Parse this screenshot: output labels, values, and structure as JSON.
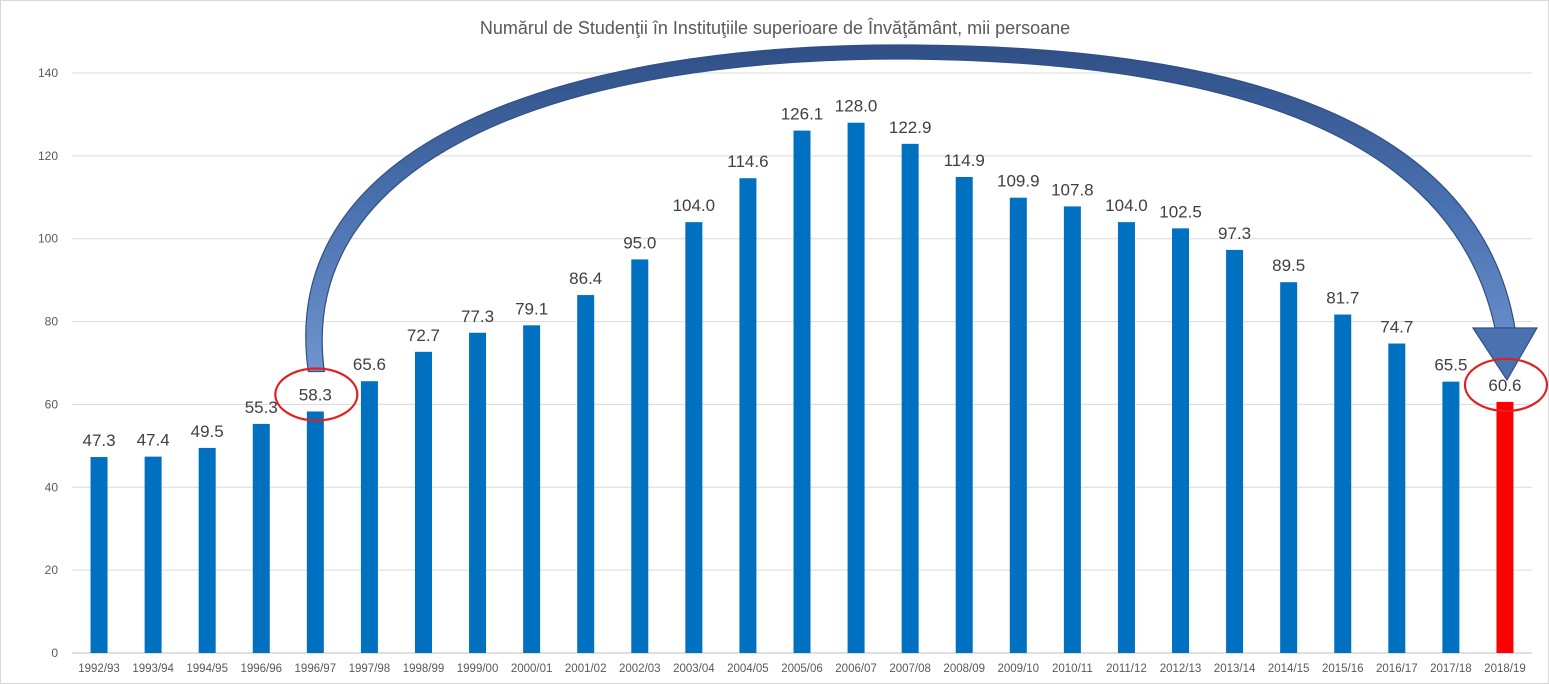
{
  "chart_data": {
    "type": "bar",
    "title": "Numărul de Studenţii în Instituţiile superioare de Învăţământ, mii persoane",
    "xlabel": "",
    "ylabel": "",
    "ylim": [
      0,
      140
    ],
    "yticks": [
      0,
      20,
      40,
      60,
      80,
      100,
      120,
      140
    ],
    "grid": true,
    "legend": "none",
    "categories": [
      "1992/93",
      "1993/94",
      "1994/95",
      "1996/96",
      "1996/97",
      "1997/98",
      "1998/99",
      "1999/00",
      "2000/01",
      "2001/02",
      "2002/03",
      "2003/04",
      "2004/05",
      "2005/06",
      "2006/07",
      "2007/08",
      "2008/09",
      "2009/10",
      "2010/11",
      "2011/12",
      "2012/13",
      "2013/14",
      "2014/15",
      "2015/16",
      "2016/17",
      "2017/18",
      "2018/19"
    ],
    "series": [
      {
        "values": [
          47.3,
          47.4,
          49.5,
          55.3,
          58.3,
          65.6,
          72.7,
          77.3,
          79.1,
          86.4,
          95.0,
          104.0,
          114.6,
          126.1,
          128.0,
          122.9,
          114.9,
          109.9,
          107.8,
          104.0,
          102.5,
          97.3,
          89.5,
          81.7,
          74.7,
          65.5,
          60.6
        ],
        "labels": [
          "47.3",
          "47.4",
          "49.5",
          "55.3",
          "58.3",
          "65.6",
          "72.7",
          "77.3",
          "79.1",
          "86.4",
          "95.0",
          "104.0",
          "114.6",
          "126.1",
          "128.0",
          "122.9",
          "114.9",
          "109.9",
          "107.8",
          "104.0",
          "102.5",
          "97.3",
          "89.5",
          "81.7",
          "74.7",
          "65.5",
          "60.6"
        ],
        "color": "#0070c0"
      }
    ],
    "highlight": {
      "category": "2018/19",
      "color": "#ff0000"
    },
    "annotations": {
      "circled_categories": [
        "1996/97",
        "2018/19"
      ],
      "circle_color": "#e02020",
      "arrow": {
        "from": "1996/97",
        "to": "2018/19",
        "color": "#3a5f9a"
      }
    }
  }
}
